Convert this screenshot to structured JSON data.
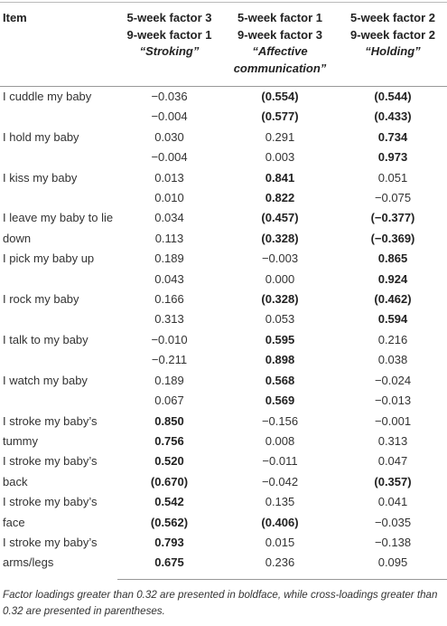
{
  "header": {
    "cells": [
      {
        "lines": [
          "Item"
        ]
      },
      {
        "lines": [
          "5-week factor 3",
          "9-week factor 1",
          "“Stroking”"
        ]
      },
      {
        "lines": [
          "5-week factor 1",
          "9-week factor 3",
          "“Affective",
          "communication”"
        ]
      },
      {
        "lines": [
          "5-week factor 2",
          "9-week factor 2",
          "“Holding”"
        ]
      }
    ]
  },
  "rows": [
    {
      "item": "I cuddle my baby",
      "values": [
        [
          {
            "text": "−0.036"
          },
          {
            "text": "(0.554)",
            "bold": true
          },
          {
            "text": "(0.544)",
            "bold": true
          }
        ],
        [
          {
            "text": "−0.004"
          },
          {
            "text": "(0.577)",
            "bold": true
          },
          {
            "text": "(0.433)",
            "bold": true
          }
        ]
      ]
    },
    {
      "item": "I hold my baby",
      "values": [
        [
          {
            "text": "0.030"
          },
          {
            "text": "0.291"
          },
          {
            "text": "0.734",
            "bold": true
          }
        ],
        [
          {
            "text": "−0.004"
          },
          {
            "text": "0.003"
          },
          {
            "text": "0.973",
            "bold": true
          }
        ]
      ]
    },
    {
      "item": "I kiss my baby",
      "values": [
        [
          {
            "text": "0.013"
          },
          {
            "text": "0.841",
            "bold": true
          },
          {
            "text": "0.051"
          }
        ],
        [
          {
            "text": "0.010"
          },
          {
            "text": "0.822",
            "bold": true
          },
          {
            "text": "−0.075"
          }
        ]
      ]
    },
    {
      "item": "I leave my baby to lie down",
      "values": [
        [
          {
            "text": "0.034"
          },
          {
            "text": "(0.457)",
            "bold": true
          },
          {
            "text": "(−0.377)",
            "bold": true
          }
        ],
        [
          {
            "text": "0.113"
          },
          {
            "text": "(0.328)",
            "bold": true
          },
          {
            "text": "(−0.369)",
            "bold": true
          }
        ]
      ]
    },
    {
      "item": "I pick my baby up",
      "values": [
        [
          {
            "text": "0.189"
          },
          {
            "text": "−0.003"
          },
          {
            "text": "0.865",
            "bold": true
          }
        ],
        [
          {
            "text": "0.043"
          },
          {
            "text": "0.000"
          },
          {
            "text": "0.924",
            "bold": true
          }
        ]
      ]
    },
    {
      "item": "I rock my baby",
      "values": [
        [
          {
            "text": "0.166"
          },
          {
            "text": "(0.328)",
            "bold": true
          },
          {
            "text": "(0.462)",
            "bold": true
          }
        ],
        [
          {
            "text": "0.313"
          },
          {
            "text": "0.053"
          },
          {
            "text": "0.594",
            "bold": true
          }
        ]
      ]
    },
    {
      "item": "I talk to my baby",
      "values": [
        [
          {
            "text": "−0.010"
          },
          {
            "text": "0.595",
            "bold": true
          },
          {
            "text": "0.216"
          }
        ],
        [
          {
            "text": "−0.211"
          },
          {
            "text": "0.898",
            "bold": true
          },
          {
            "text": "0.038"
          }
        ]
      ]
    },
    {
      "item": "I watch my baby",
      "values": [
        [
          {
            "text": "0.189"
          },
          {
            "text": "0.568",
            "bold": true
          },
          {
            "text": "−0.024"
          }
        ],
        [
          {
            "text": "0.067"
          },
          {
            "text": "0.569",
            "bold": true
          },
          {
            "text": "−0.013"
          }
        ]
      ]
    },
    {
      "item": "I stroke my baby’s tummy",
      "values": [
        [
          {
            "text": "0.850",
            "bold": true
          },
          {
            "text": "−0.156"
          },
          {
            "text": "−0.001"
          }
        ],
        [
          {
            "text": "0.756",
            "bold": true
          },
          {
            "text": "0.008"
          },
          {
            "text": "0.313"
          }
        ]
      ]
    },
    {
      "item": "I stroke my baby’s back",
      "values": [
        [
          {
            "text": "0.520",
            "bold": true
          },
          {
            "text": "−0.011"
          },
          {
            "text": "0.047"
          }
        ],
        [
          {
            "text": "(0.670)",
            "bold": true
          },
          {
            "text": "−0.042"
          },
          {
            "text": "(0.357)",
            "bold": true
          }
        ]
      ]
    },
    {
      "item": "I stroke my baby’s face",
      "values": [
        [
          {
            "text": "0.542",
            "bold": true
          },
          {
            "text": "0.135"
          },
          {
            "text": "0.041"
          }
        ],
        [
          {
            "text": "(0.562)",
            "bold": true
          },
          {
            "text": "(0.406)",
            "bold": true
          },
          {
            "text": "−0.035"
          }
        ]
      ]
    },
    {
      "item": "I stroke my baby’s arms/legs",
      "values": [
        [
          {
            "text": "0.793",
            "bold": true
          },
          {
            "text": "0.015"
          },
          {
            "text": "−0.138"
          }
        ],
        [
          {
            "text": "0.675",
            "bold": true
          },
          {
            "text": "0.236"
          },
          {
            "text": "0.095"
          }
        ]
      ]
    }
  ],
  "footnote": "Factor loadings greater than 0.32 are presented in boldface, while cross-loadings greater than 0.32 are presented in parentheses."
}
